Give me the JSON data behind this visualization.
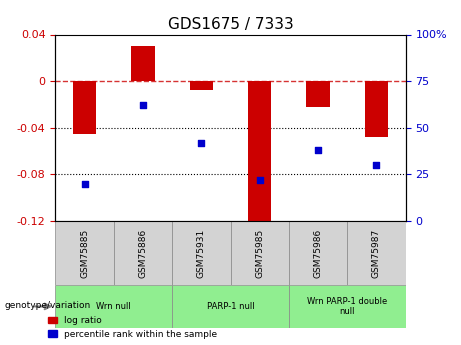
{
  "title": "GDS1675 / 7333",
  "samples": [
    "GSM75885",
    "GSM75886",
    "GSM75931",
    "GSM75985",
    "GSM75986",
    "GSM75987"
  ],
  "log_ratios": [
    -0.045,
    0.03,
    -0.008,
    -0.125,
    -0.022,
    -0.048
  ],
  "percentile_ranks": [
    20,
    62,
    42,
    22,
    38,
    30
  ],
  "ylim_left": [
    -0.12,
    0.04
  ],
  "ylim_right": [
    0,
    100
  ],
  "yticks_left": [
    0.04,
    0,
    -0.04,
    -0.08,
    -0.12
  ],
  "yticks_right": [
    100,
    75,
    50,
    25,
    0
  ],
  "groups": [
    {
      "label": "Wrn null",
      "samples": [
        0,
        1
      ],
      "color": "#90EE90"
    },
    {
      "label": "PARP-1 null",
      "samples": [
        2,
        3
      ],
      "color": "#90EE90"
    },
    {
      "label": "Wrn PARP-1 double\nnull",
      "samples": [
        4,
        5
      ],
      "color": "#90EE90"
    }
  ],
  "bar_color": "#CC0000",
  "dot_color": "#0000CC",
  "bar_width": 0.4,
  "hline_color": "#CC0000",
  "grid_color": "#000000",
  "legend_bar_label": "log ratio",
  "legend_dot_label": "percentile rank within the sample",
  "xlabel_fontsize": 8,
  "title_fontsize": 11
}
